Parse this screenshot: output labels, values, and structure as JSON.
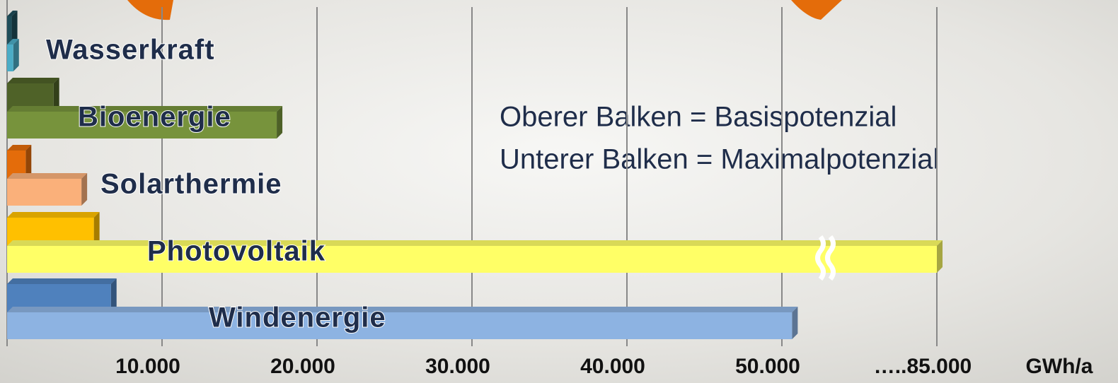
{
  "chart_data": {
    "type": "bar",
    "orientation": "horizontal",
    "categories": [
      "Wasserkraft",
      "Bioenergie",
      "Solarthermie",
      "Photovoltaik",
      "Windenergie"
    ],
    "series": [
      {
        "values": [
          300,
          3000,
          1200,
          5600,
          6700
        ],
        "colors": [
          "#1f4e5a",
          "#4f6228",
          "#e46c0a",
          "#ffc000",
          "#4f81bd"
        ]
      },
      {
        "values": [
          400,
          17400,
          4800,
          85000,
          52300
        ],
        "colors": [
          "#4bacc6",
          "#77933c",
          "#fab07a",
          "#ffff66",
          "#8db3e2"
        ]
      }
    ],
    "annotations": [
      "Oberer Balken = Basispotenzial",
      "Unterer Balken = Maximalpotenzial"
    ],
    "x_label": "GWh/a",
    "xlim": [
      0,
      85000
    ],
    "xticks": [
      {
        "value": 10000,
        "label": "10.000"
      },
      {
        "value": 20000,
        "label": "20.000"
      },
      {
        "value": 30000,
        "label": "30.000"
      },
      {
        "value": 40000,
        "label": "40.000"
      },
      {
        "value": 50000,
        "label": "50.000"
      },
      {
        "value": 85000,
        "label": "…..85.000"
      }
    ],
    "axis_break": true,
    "grid": true
  }
}
